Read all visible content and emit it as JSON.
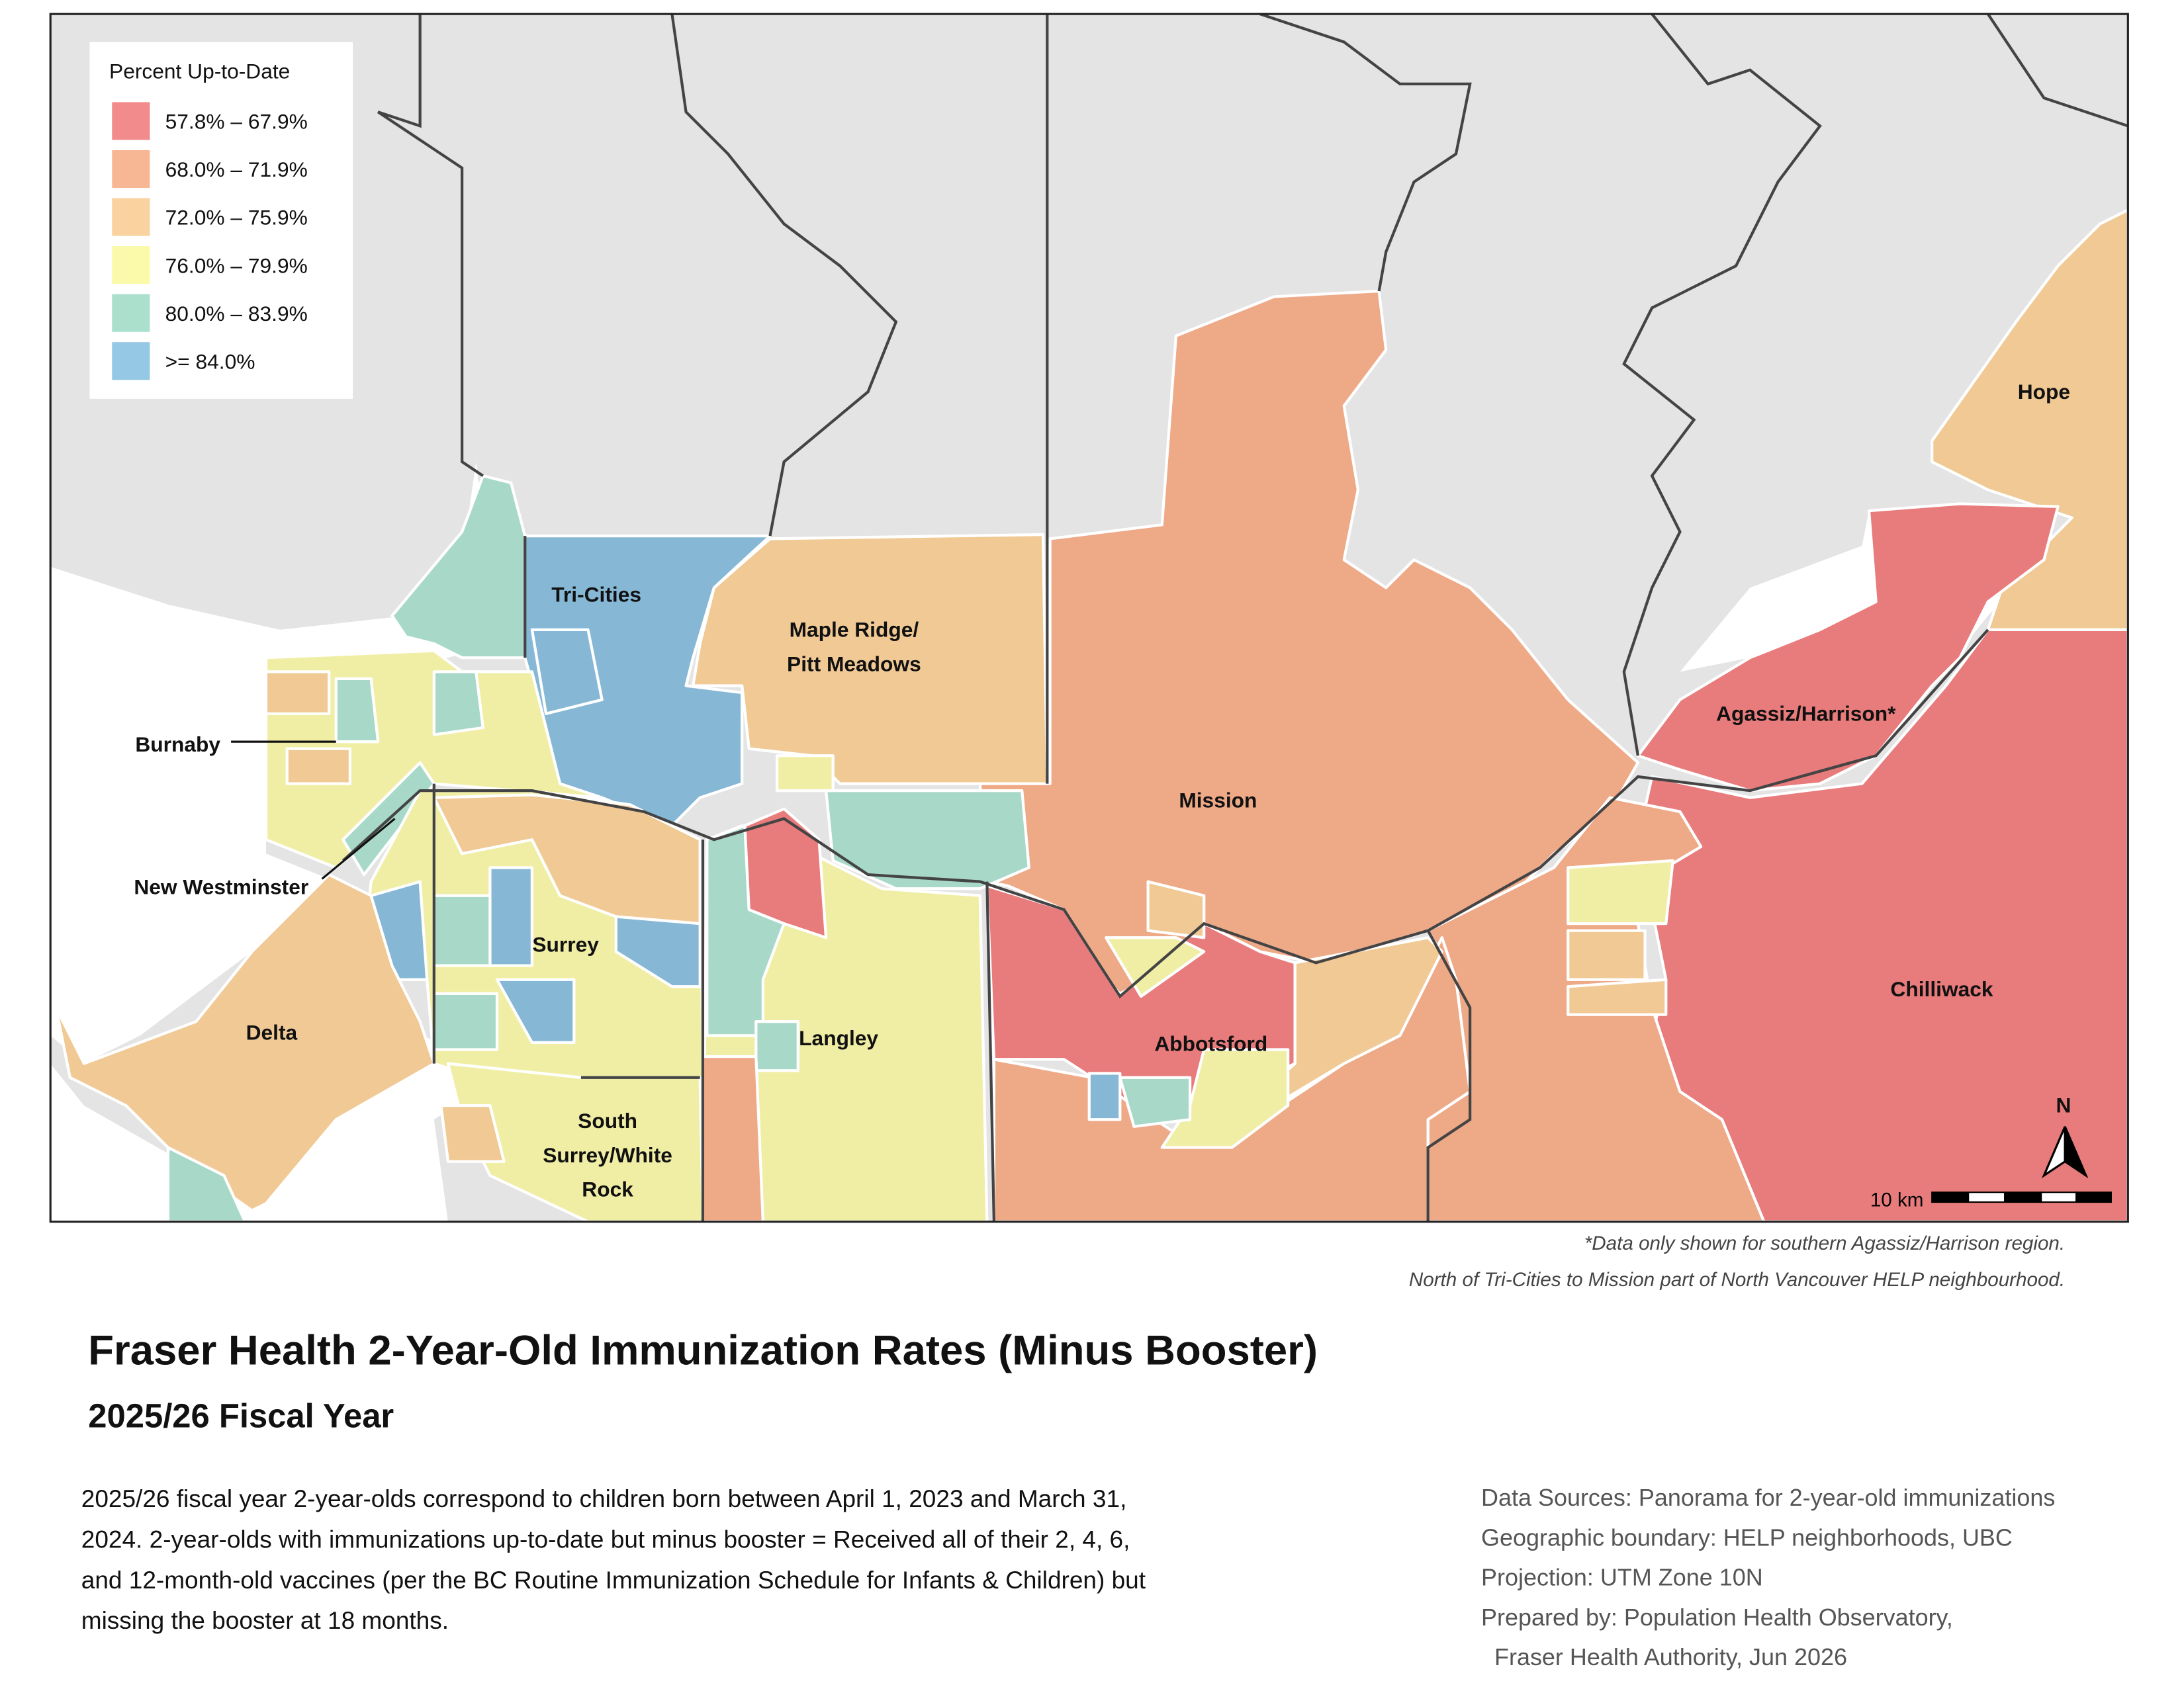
{
  "legend": {
    "title": "Percent Up-to-Date",
    "items": [
      {
        "label": "57.8% – 67.9%",
        "color": "#f28b8b"
      },
      {
        "label": "68.0% – 71.9%",
        "color": "#f8b794"
      },
      {
        "label": "72.0% – 75.9%",
        "color": "#fad29f"
      },
      {
        "label": "76.0% – 79.9%",
        "color": "#fafaaa"
      },
      {
        "label": "80.0% – 83.9%",
        "color": "#abe0cd"
      },
      {
        "label": ">= 84.0%",
        "color": "#95c8e4"
      }
    ]
  },
  "map_labels": [
    {
      "lines": [
        "Hope"
      ]
    },
    {
      "lines": [
        "Tri-Cities"
      ]
    },
    {
      "lines": [
        "Maple Ridge/",
        "Pitt Meadows"
      ]
    },
    {
      "lines": [
        "Agassiz/Harrison*"
      ]
    },
    {
      "lines": [
        "Mission"
      ]
    },
    {
      "lines": [
        "Burnaby"
      ]
    },
    {
      "lines": [
        "Surrey"
      ]
    },
    {
      "lines": [
        "Chilliwack"
      ]
    },
    {
      "lines": [
        "Delta"
      ]
    },
    {
      "lines": [
        "Abbotsford"
      ]
    },
    {
      "lines": [
        "Langley"
      ]
    },
    {
      "lines": [
        "New Westminster"
      ]
    },
    {
      "lines": [
        "South",
        "Surrey/White",
        "Rock"
      ]
    }
  ],
  "north_label": "N",
  "scale_label": "10 km",
  "notes": [
    "*Data only shown for southern Agassiz/Harrison region.",
    "North of Tri-Cities to Mission part of North Vancouver HELP neighbourhood."
  ],
  "title": "Fraser Health 2-Year-Old Immunization Rates (Minus Booster)",
  "subtitle": "2025/26 Fiscal Year",
  "description": [
    "2025/26 fiscal year 2-year-olds correspond to children born between April 1, 2023 and March 31,",
    "2024. 2-year-olds with immunizations up-to-date but minus booster = Received all of their 2, 4, 6,",
    "and 12-month-old vaccines (per the BC Routine Immunization Schedule for Infants & Children) but",
    "missing the booster at 18 months."
  ],
  "sources": [
    "Data Sources: Panorama for 2-year-old immunizations",
    "Geographic boundary: HELP neighborhoods, UBC",
    "Projection: UTM Zone 10N",
    "Prepared by: Population Health Observatory,",
    "  Fraser Health Authority, Jun 2026"
  ]
}
